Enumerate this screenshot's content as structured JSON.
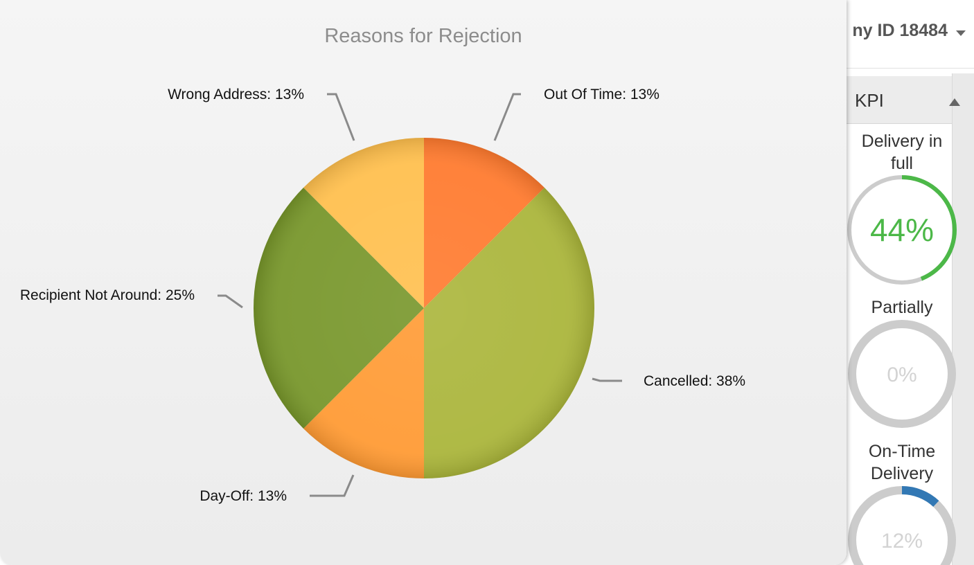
{
  "header": {
    "company_label": "ny ID 18484"
  },
  "kpi": {
    "title": "KPI",
    "items": [
      {
        "label": "Delivery in full",
        "value_text": "44%",
        "value": 44,
        "color": "#4cb848"
      },
      {
        "label": "Partially",
        "value_text": "0%",
        "value": 0,
        "color": "#bbbbbb"
      },
      {
        "label": "On-Time Delivery",
        "value_text": "12%",
        "value": 12,
        "color": "#3278b4"
      }
    ]
  },
  "chart_data": {
    "type": "pie",
    "title": "Reasons for Rejection",
    "slices": [
      {
        "name": "Out Of Time",
        "value": 12.5,
        "label": "Out Of Time: 13%",
        "color": "#ff7a2e"
      },
      {
        "name": "Cancelled",
        "value": 37.5,
        "label": "Cancelled: 38%",
        "color": "#aab53a"
      },
      {
        "name": "Day-Off",
        "value": 12.5,
        "label": "Day-Off: 13%",
        "color": "#ff9a33"
      },
      {
        "name": "Recipient Not Around",
        "value": 25,
        "label": "Recipient Not Around: 25%",
        "color": "#77962a"
      },
      {
        "name": "Wrong Address",
        "value": 12.5,
        "label": "Wrong Address: 13%",
        "color": "#ffbf4d"
      }
    ]
  }
}
